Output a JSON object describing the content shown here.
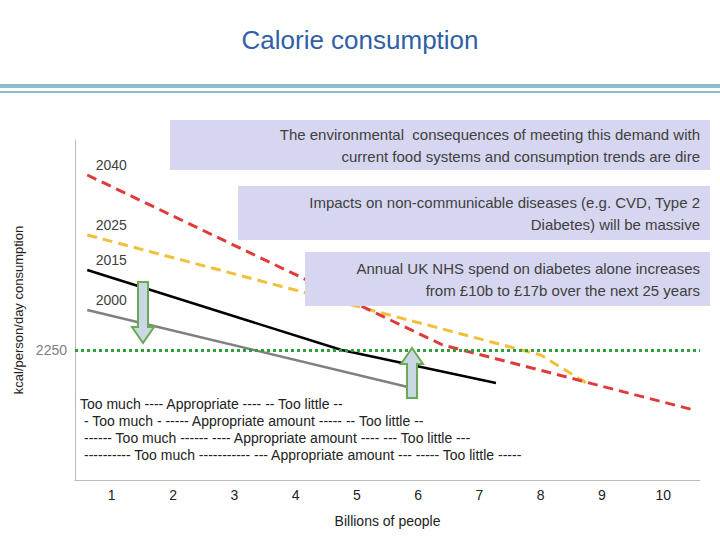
{
  "chart_data": {
    "type": "line",
    "title": "Calorie consumption",
    "x_label": "Billions of people",
    "y_label": "kcal/person/day consumption",
    "xlim": [
      0.4,
      10.6
    ],
    "xticks": [
      1,
      2,
      3,
      4,
      5,
      6,
      7,
      8,
      9,
      10
    ],
    "ylim": [
      1600,
      3300
    ],
    "yticks": [
      2250
    ],
    "grid": true,
    "series": [
      {
        "name": "2040",
        "color": "#e03a3a",
        "line_style": "dashed",
        "x": [
          0.6,
          6.4,
          10.5
        ],
        "values": [
          3125,
          2275,
          1950
        ]
      },
      {
        "name": "2025",
        "color": "#f2bf3a",
        "line_style": "dashed",
        "x": [
          0.6,
          8.0,
          8.8
        ],
        "values": [
          2825,
          2225,
          2075
        ]
      },
      {
        "name": "2015",
        "color": "#000000",
        "line_style": "solid",
        "x": [
          0.6,
          4.75,
          7.27
        ],
        "values": [
          2650,
          2250,
          2085
        ]
      },
      {
        "name": "2000",
        "color": "#808080",
        "line_style": "solid",
        "x": [
          0.6,
          5.9
        ],
        "values": [
          2450,
          2060
        ]
      }
    ],
    "annotations": [
      {
        "lines": [
          "The environmental  consequences of meeting this demand with",
          "current food systems and consumption trends are dire"
        ]
      },
      {
        "lines": [
          "Impacts on non-communicable diseases (e.g. CVD, Type 2",
          "Diabetes) will be massive"
        ]
      },
      {
        "lines": [
          "Annual UK NHS spend on diabetes alone increases",
          "from £10b to £17b over the next 25 years"
        ]
      }
    ],
    "range_labels": [
      "Too much ---- Appropriate ---- -- Too little --",
      "- Too much - ----- Appropriate amount ----- -- Too little --",
      "------ Too much ------ ---- Appropriate amount ---- --- Too little ---",
      "---------- Too much ----------- --- Appropriate amount --- ----- Too little -----"
    ]
  }
}
